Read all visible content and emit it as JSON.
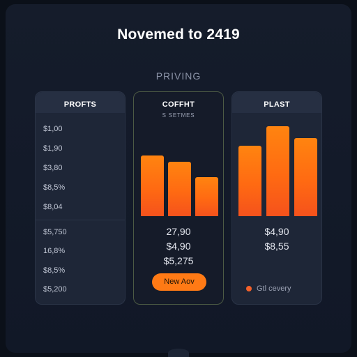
{
  "header": {
    "title": "Novemed to 2419",
    "section_label": "PRIVING"
  },
  "cards": {
    "left": {
      "title": "PROFTS",
      "prices": [
        "$1,00",
        "$1,90",
        "$3,80",
        "$8,5%",
        "$8,04",
        "$5,750",
        "16,8%",
        "$8,5%",
        "$5,200"
      ]
    },
    "middle": {
      "title": "COFFHT",
      "subtitle": "S SETMES",
      "bar_values": [
        0.71,
        0.64,
        0.46
      ],
      "values": [
        "27,90",
        "$4,90",
        "$5,275"
      ],
      "button_label": "New Aov"
    },
    "right": {
      "title": "PLAST",
      "bar_values": [
        0.78,
        1.0,
        0.87
      ],
      "values": [
        "$4,90",
        "$8,55"
      ],
      "legend_label": "Gtl cevery"
    }
  },
  "colors": {
    "background": "#0b1019",
    "card": "#1e2637",
    "accent": "#ff7a15",
    "highlight_border": "#4c5a44"
  }
}
